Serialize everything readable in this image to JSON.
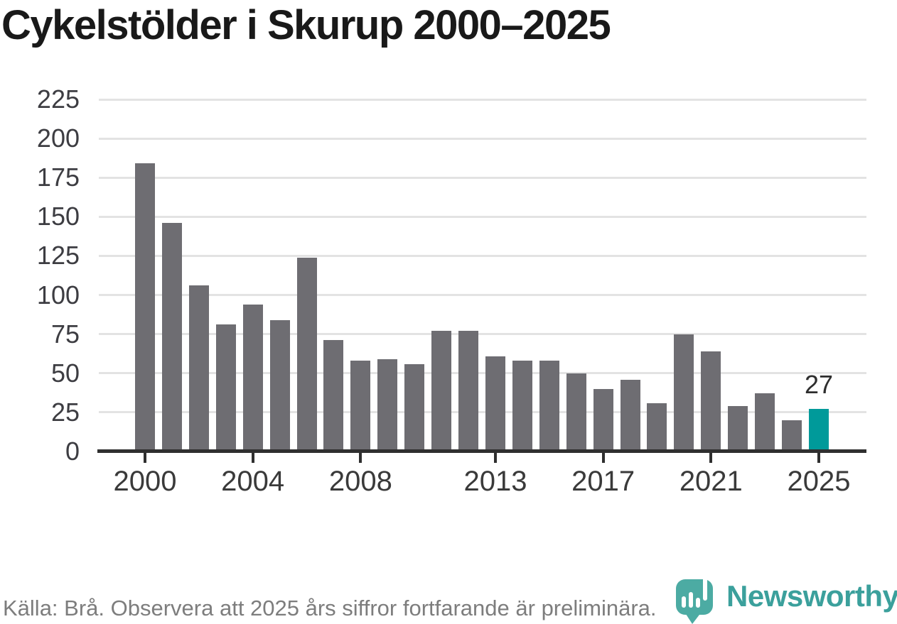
{
  "title": "Cykelstölder i Skurup 2000–2025",
  "chart_data": {
    "type": "bar",
    "title": "Cykelstölder i Skurup 2000–2025",
    "categories": [
      2000,
      2001,
      2002,
      2003,
      2004,
      2005,
      2006,
      2007,
      2008,
      2009,
      2010,
      2011,
      2012,
      2013,
      2014,
      2015,
      2016,
      2017,
      2018,
      2019,
      2020,
      2021,
      2022,
      2023,
      2024,
      2025
    ],
    "values": [
      184,
      146,
      106,
      81,
      94,
      84,
      124,
      71,
      58,
      59,
      56,
      77,
      77,
      61,
      58,
      58,
      50,
      40,
      46,
      31,
      75,
      64,
      29,
      37,
      20,
      27
    ],
    "highlight": {
      "year": 2025,
      "value": 27,
      "label": "27"
    },
    "ylim": [
      0,
      225
    ],
    "yticks": [
      0,
      25,
      50,
      75,
      100,
      125,
      150,
      175,
      200,
      225
    ],
    "xticks": [
      2000,
      2004,
      2008,
      2013,
      2017,
      2021,
      2025
    ],
    "grid": "horizontal",
    "legend": "none",
    "bar_color": "#6e6d72",
    "highlight_color": "#009a9a",
    "xlabel": "",
    "ylabel": ""
  },
  "footer": {
    "source_note": "Källa: Brå. Observera att 2025 års siffror fortfarande är preliminära."
  },
  "branding": {
    "wordmark": "Newsworthy",
    "logo_color": "#4caba3",
    "wordmark_color": "#3ba09c"
  }
}
